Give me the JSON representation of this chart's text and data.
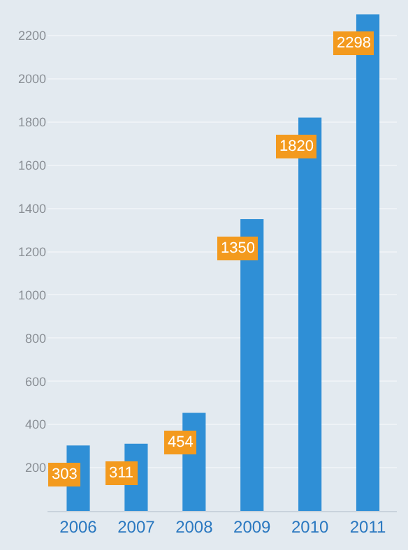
{
  "chart_data": {
    "type": "bar",
    "categories": [
      "2006",
      "2007",
      "2008",
      "2009",
      "2010",
      "2011"
    ],
    "values": [
      303,
      311,
      454,
      1350,
      1820,
      2298
    ],
    "color": "#2f8fd6",
    "ylim": [
      0,
      2300
    ],
    "yticks": [
      200,
      400,
      600,
      800,
      1000,
      1200,
      1400,
      1600,
      1800,
      2000,
      2200
    ],
    "data_labels": true,
    "grid": "y"
  }
}
